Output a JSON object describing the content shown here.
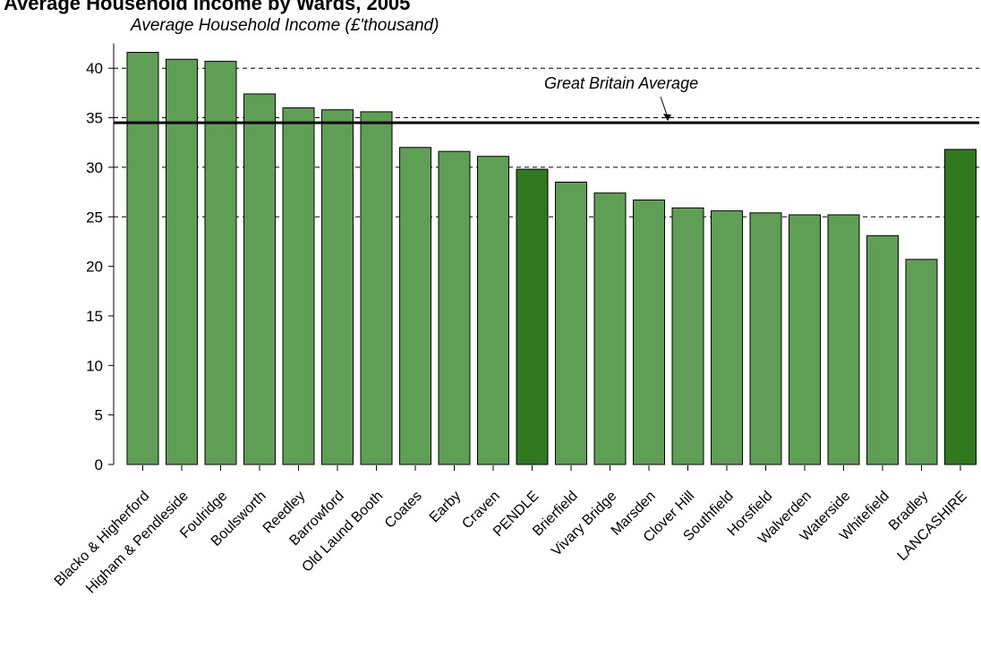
{
  "chart_data": {
    "type": "bar",
    "title": "Average Household Income by Wards, 2005",
    "ylabel": "Average Household Income (£'thousand)",
    "xlabel": "",
    "ylim": [
      0,
      42
    ],
    "yticks": [
      0,
      5,
      10,
      15,
      20,
      25,
      30,
      35,
      40
    ],
    "categories": [
      "Blacko & Higherford",
      "Higham & Pendleside",
      "Foulridge",
      "Boulsworth",
      "Reedley",
      "Barrowford",
      "Old Laund Booth",
      "Coates",
      "Earby",
      "Craven",
      "PENDLE",
      "Brierfield",
      "Vivary Bridge",
      "Marsden",
      "Clover Hill",
      "Southfield",
      "Horsfield",
      "Walverden",
      "Waterside",
      "Whitefield",
      "Bradley",
      "LANCASHIRE"
    ],
    "values": [
      41.6,
      40.9,
      40.7,
      37.4,
      36.0,
      35.8,
      35.6,
      32.0,
      31.6,
      31.1,
      29.8,
      28.5,
      27.4,
      26.7,
      25.9,
      25.6,
      25.4,
      25.2,
      25.2,
      23.1,
      20.7,
      31.8
    ],
    "highlighted": [
      "PENDLE",
      "LANCASHIRE"
    ],
    "reference_line": {
      "label": "Great Britain Average",
      "value": 34.5
    },
    "grid": false,
    "colors": {
      "bar": "#5f9e55",
      "bar_highlight": "#317720",
      "outline": "#000000"
    }
  }
}
